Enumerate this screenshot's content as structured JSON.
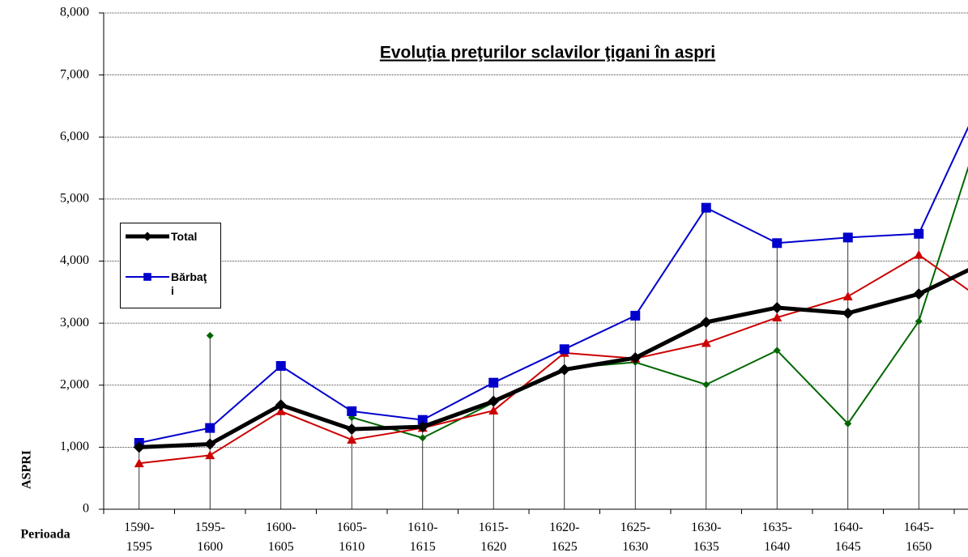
{
  "chart_data": {
    "type": "line",
    "title": "Evoluţia preţurilor sclavilor ţigani în aspri",
    "x_label": "Perioada",
    "y_label": "ASPRI",
    "categories": [
      "1590-1595",
      "1595-1600",
      "1600-1605",
      "1605-1610",
      "1610-1615",
      "1615-1620",
      "1620-1625",
      "1625-1630",
      "1630-1635",
      "1635-1640",
      "1640-1645",
      "1645-1650",
      null
    ],
    "series": [
      {
        "name": "Total",
        "color": "#000000",
        "values": [
          1000,
          1050,
          1680,
          1290,
          1330,
          1740,
          2250,
          2440,
          3015,
          3250,
          3160,
          3470,
          4020
        ]
      },
      {
        "name": "Bărbaţi",
        "color": "#0000cc",
        "values": [
          1070,
          1310,
          2310,
          1580,
          1440,
          2040,
          2580,
          3120,
          4860,
          4290,
          4380,
          4440,
          6900
        ]
      },
      {
        "color": "#cc0000",
        "values": [
          740,
          870,
          1580,
          1120,
          1310,
          1590,
          2520,
          2430,
          2680,
          3090,
          3430,
          4100,
          3290
        ]
      },
      {
        "color": "#006600",
        "values": [
          null,
          2800,
          null,
          1480,
          1150,
          1720,
          2270,
          2370,
          2010,
          2560,
          1380,
          3030,
          6580
        ]
      }
    ],
    "ylim": [
      0,
      8000
    ],
    "yticks": [
      0,
      {
        "value": 1000,
        "label": "1,000"
      },
      {
        "value": 2000,
        "label": "2,000"
      },
      {
        "value": 3000,
        "label": "3,000"
      },
      {
        "value": 4000,
        "label": "4,000"
      },
      {
        "value": 5000,
        "label": "5,000"
      },
      {
        "value": 6000,
        "label": "6,000"
      },
      {
        "value": 7000,
        "label": "7,000"
      },
      {
        "value": 8000,
        "label": "8,000"
      }
    ],
    "grid": true,
    "legend": "left"
  }
}
